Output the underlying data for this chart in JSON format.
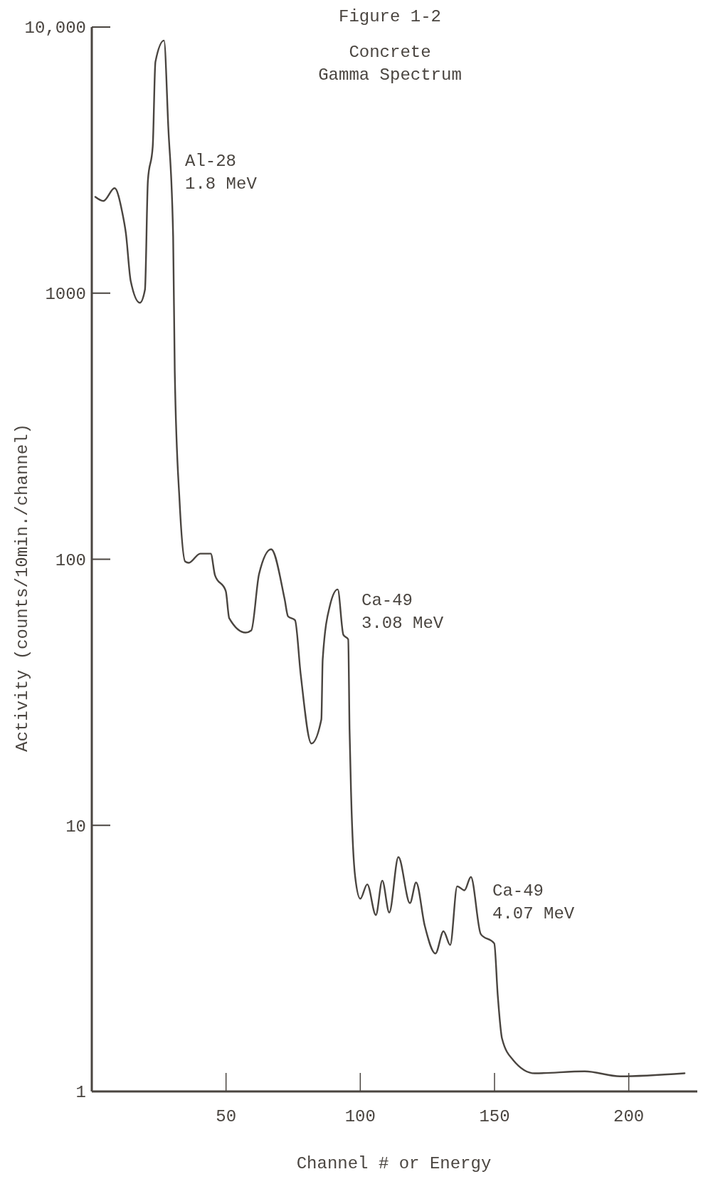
{
  "chart_data": {
    "type": "line",
    "title": "Concrete\nGamma Spectrum",
    "xlabel": "Channel # or Energy",
    "ylabel": "Activity (counts/10min./channel)",
    "annotations": [
      "Figure 1-2",
      "Al-28\n1.8 MeV",
      "Ca-49\n3.08 MeV",
      "Ca-49\n4.07 MeV"
    ],
    "x": [
      1.3,
      4.3,
      8.5,
      11.4,
      12.7,
      14.5,
      17.9,
      19.8,
      20.9,
      22.7,
      23.7,
      26.9,
      28.5,
      30.3,
      30.9,
      32.7,
      34.8,
      36.1,
      40.4,
      44.3,
      45.9,
      49.9,
      51.2,
      57.3,
      59.4,
      62.3,
      66.8,
      71.8,
      73.1,
      75.7,
      77.8,
      81.8,
      85.5,
      86,
      88.7,
      91.6,
      93.7,
      95.5,
      96,
      96.6,
      98.1,
      100,
      102.6,
      105.8,
      108.2,
      110.8,
      114.2,
      118.5,
      120.8,
      124,
      128,
      131,
      133.5,
      136.1,
      138.8,
      141.2,
      144.9,
      149.9,
      151.2,
      152.8,
      157,
      165,
      183.6,
      196.8,
      220.8
    ],
    "series": [
      {
        "color": "#4a4540",
        "values": [
          2300,
          2220,
          2480,
          2000,
          1680,
          1110,
          920,
          1030,
          2650,
          3560,
          7400,
          8900,
          4200,
          1630,
          510,
          165,
          98,
          97,
          105,
          105,
          87,
          76,
          60,
          53,
          54,
          88,
          109,
          71,
          61,
          59,
          37,
          20.3,
          25,
          42,
          67,
          77,
          52,
          50,
          23,
          12.9,
          6.4,
          5.3,
          6.0,
          4.6,
          6.2,
          4.7,
          7.6,
          5.1,
          6.1,
          4.2,
          3.3,
          4.0,
          3.55,
          5.9,
          5.7,
          6.4,
          3.9,
          3.6,
          2.3,
          1.58,
          1.31,
          1.17,
          1.19,
          1.14,
          1.17
        ]
      }
    ],
    "xlim": [
      0,
      225
    ],
    "ylim": [
      1,
      10000
    ],
    "xticks": [
      50,
      100,
      150,
      200
    ],
    "yticks": [
      1,
      10,
      100,
      1000,
      {
        "value": 10000,
        "label": "10,000"
      }
    ],
    "log": "y",
    "grid": false,
    "marker": "none",
    "line_style": "solid"
  }
}
